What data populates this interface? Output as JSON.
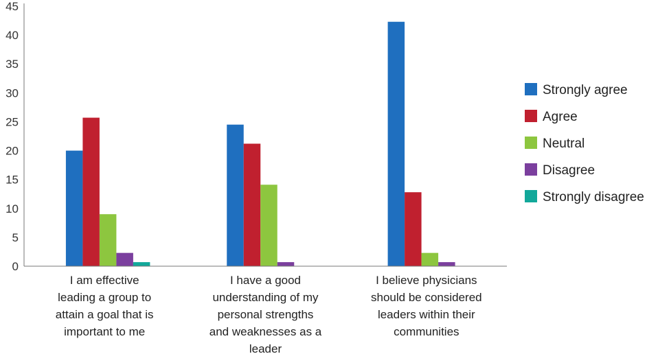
{
  "chart_data": {
    "type": "bar",
    "categories": [
      [
        "I am effective",
        "leading a group to",
        "attain a goal that is",
        "important to me"
      ],
      [
        "I have a good",
        "understanding of my",
        "personal strengths",
        "and weaknesses as a",
        "leader"
      ],
      [
        "I believe physicians",
        "should be considered",
        "leaders within their",
        "communities"
      ]
    ],
    "series": [
      {
        "name": "Strongly agree",
        "color": "#1f6fbf",
        "values": [
          20,
          24.5,
          42.3
        ]
      },
      {
        "name": "Agree",
        "color": "#c0202f",
        "values": [
          25.7,
          21.2,
          12.8
        ]
      },
      {
        "name": "Neutral",
        "color": "#8dc63f",
        "values": [
          9,
          14.1,
          2.3
        ]
      },
      {
        "name": "Disagree",
        "color": "#7b3f9e",
        "values": [
          2.3,
          0.7,
          0.7
        ]
      },
      {
        "name": "Strongly disagree",
        "color": "#12a89a",
        "values": [
          0.7,
          0,
          0
        ]
      }
    ],
    "yticks": [
      "0",
      "5",
      "10",
      "15",
      "20",
      "25",
      "30",
      "35",
      "40",
      "45"
    ],
    "ylim": [
      0,
      45
    ],
    "grid": false,
    "legend": "right"
  }
}
